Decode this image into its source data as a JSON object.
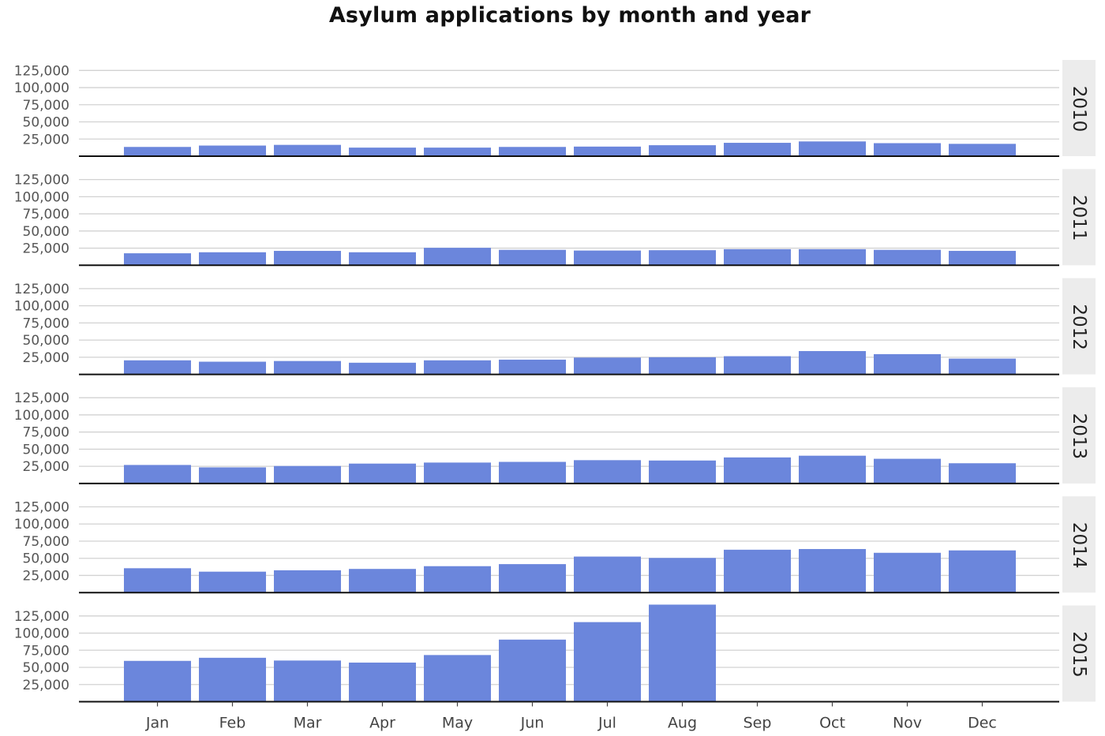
{
  "chart_data": {
    "type": "bar",
    "title": "Asylum applications by month and year",
    "xlabel": "",
    "ylabel": "",
    "categories": [
      "Jan",
      "Feb",
      "Mar",
      "Apr",
      "May",
      "Jun",
      "Jul",
      "Aug",
      "Sep",
      "Oct",
      "Nov",
      "Dec"
    ],
    "yticks": [
      25000,
      50000,
      75000,
      100000,
      125000
    ],
    "ytick_labels": [
      "25,000",
      "50,000",
      "75,000",
      "100,000",
      "125,000"
    ],
    "ylim": [
      0,
      138000
    ],
    "grid": true,
    "facet": "rows",
    "bar_color": "#6b86dc",
    "panels": [
      {
        "name": "2010",
        "values": [
          13500,
          15500,
          16500,
          12500,
          12500,
          13500,
          14000,
          16000,
          19500,
          21500,
          19000,
          18000
        ]
      },
      {
        "name": "2011",
        "values": [
          17500,
          19000,
          21000,
          19000,
          25500,
          22500,
          21500,
          22000,
          23500,
          23500,
          22500,
          21000
        ]
      },
      {
        "name": "2012",
        "values": [
          20500,
          18500,
          19500,
          17000,
          20500,
          21500,
          24500,
          25000,
          26500,
          34000,
          29500,
          23000
        ]
      },
      {
        "name": "2013",
        "values": [
          27000,
          23500,
          25500,
          29000,
          30500,
          31500,
          34000,
          33500,
          38000,
          40500,
          36000,
          29500
        ]
      },
      {
        "name": "2014",
        "values": [
          35500,
          30500,
          32500,
          34500,
          38500,
          41500,
          52500,
          50500,
          62500,
          63500,
          58000,
          61500
        ]
      },
      {
        "name": "2015",
        "values": [
          59500,
          64000,
          60000,
          57000,
          68000,
          90500,
          116000,
          141500,
          null,
          null,
          null,
          null
        ]
      }
    ]
  }
}
